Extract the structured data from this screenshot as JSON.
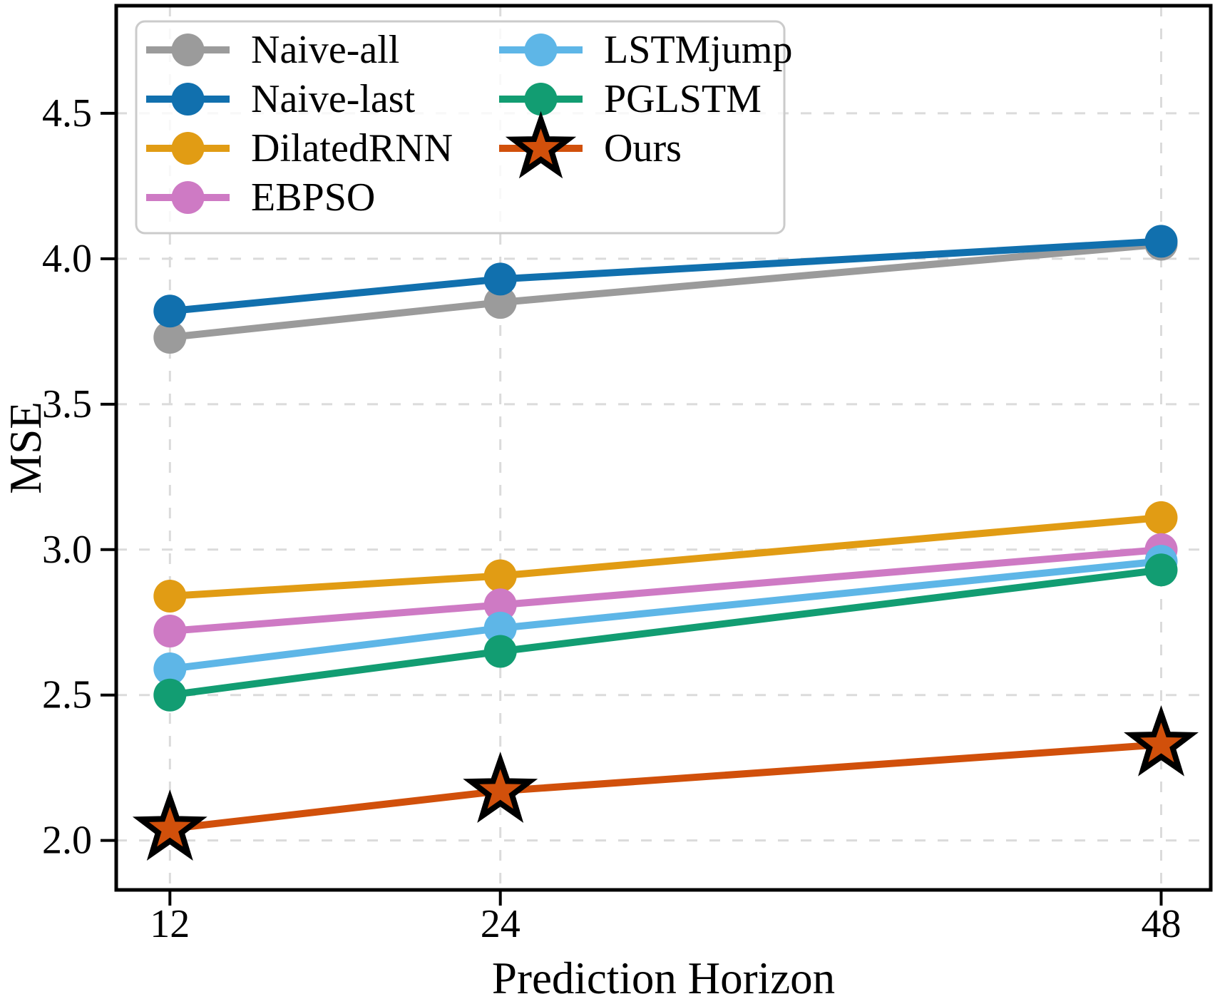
{
  "figure": {
    "background": "#ffffff",
    "plot_border_color": "#000000",
    "grid_color": "#dbdbdb",
    "legend_border_color": "#cbcbcb",
    "legend_background": "rgba(255,255,255,0.8)"
  },
  "chart_data": {
    "type": "line",
    "title": "",
    "xlabel": "Prediction Horizon",
    "ylabel": "MSE",
    "x": [
      12,
      24,
      48
    ],
    "x_tick_labels": [
      "12",
      "24",
      "48"
    ],
    "yticks": [
      2.0,
      2.5,
      3.0,
      3.5,
      4.0,
      4.5
    ],
    "y_tick_labels": [
      "2.0",
      "2.5",
      "3.0",
      "3.5",
      "4.0",
      "4.5"
    ],
    "xlim": [
      10.05,
      49.8
    ],
    "ylim": [
      1.83,
      4.87
    ],
    "grid": true,
    "grid_style": "dashed",
    "legend_position": "upper-left",
    "legend_columns": 2,
    "legend_col_split": 4,
    "series": [
      {
        "name": "Naive-all",
        "color": "#9b9b9b",
        "marker": "circle",
        "values": [
          3.73,
          3.85,
          4.05
        ]
      },
      {
        "name": "Naive-last",
        "color": "#1170ae",
        "marker": "circle",
        "values": [
          3.82,
          3.93,
          4.06
        ]
      },
      {
        "name": "DilatedRNN",
        "color": "#e19c14",
        "marker": "circle",
        "values": [
          2.84,
          2.91,
          3.11
        ]
      },
      {
        "name": "EBPSO",
        "color": "#ce7ac4",
        "marker": "circle",
        "values": [
          2.72,
          2.81,
          3.0
        ]
      },
      {
        "name": "LSTMjump",
        "color": "#5eb6e7",
        "marker": "circle",
        "values": [
          2.59,
          2.73,
          2.96
        ]
      },
      {
        "name": "PGLSTM",
        "color": "#129d72",
        "marker": "circle",
        "values": [
          2.5,
          2.65,
          2.93
        ]
      },
      {
        "name": "Ours",
        "color": "#d1500b",
        "marker": "star",
        "marker_edge_color": "#000000",
        "values": [
          2.04,
          2.17,
          2.33
        ]
      }
    ]
  }
}
